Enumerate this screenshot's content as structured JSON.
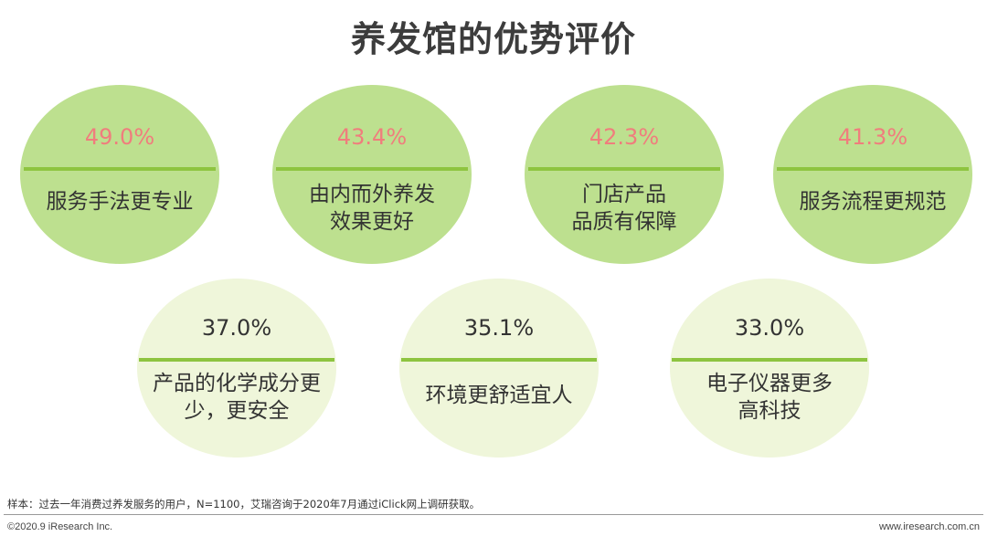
{
  "title": "养发馆的优势评价",
  "colors": {
    "top_fill": "#bde08f",
    "top_bar": "#8ec440",
    "top_pct": "#f07d7d",
    "bottom_fill": "#eff6da",
    "bottom_bar": "#8ec440",
    "bottom_pct": "#333333"
  },
  "chart_data": {
    "type": "bubble-list",
    "title": "养发馆的优势评价",
    "unit": "%",
    "items": [
      {
        "value_label": "49.0%",
        "value": 49.0,
        "lines": [
          "服务手法更专业"
        ]
      },
      {
        "value_label": "43.4%",
        "value": 43.4,
        "lines": [
          "由内而外养发",
          "效果更好"
        ]
      },
      {
        "value_label": "42.3%",
        "value": 42.3,
        "lines": [
          "门店产品",
          "品质有保障"
        ]
      },
      {
        "value_label": "41.3%",
        "value": 41.3,
        "lines": [
          "服务流程更规范"
        ]
      },
      {
        "value_label": "37.0%",
        "value": 37.0,
        "lines": [
          "产品的化学成分更",
          "少，更安全"
        ]
      },
      {
        "value_label": "35.1%",
        "value": 35.1,
        "lines": [
          "环境更舒适宜人"
        ]
      },
      {
        "value_label": "33.0%",
        "value": 33.0,
        "lines": [
          "电子仪器更多",
          "高科技"
        ]
      }
    ]
  },
  "footer": {
    "note": "样本：过去一年消费过养发服务的用户，N=1100，艾瑞咨询于2020年7月通过iClick网上调研获取。",
    "copyright": "©2020.9 iResearch Inc.",
    "site": "www.iresearch.com.cn"
  }
}
